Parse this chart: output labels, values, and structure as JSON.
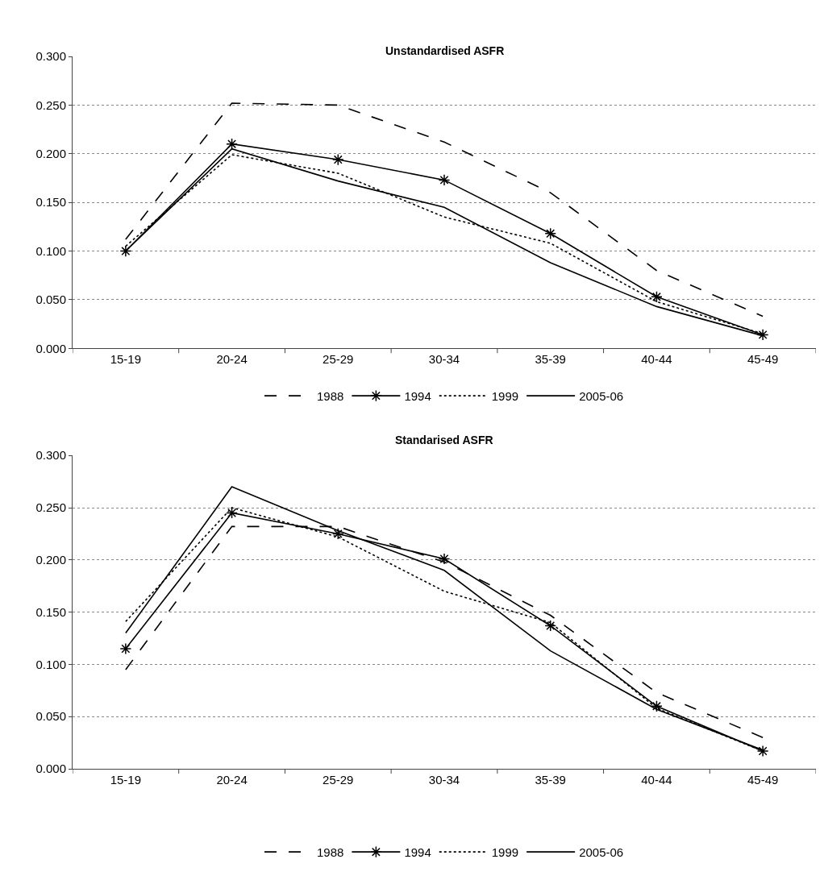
{
  "chart_data": [
    {
      "type": "line",
      "title": "Unstandardised ASFR",
      "categories": [
        "15-19",
        "20-24",
        "25-29",
        "30-34",
        "35-39",
        "40-44",
        "45-49"
      ],
      "series": [
        {
          "name": "1988",
          "color": "#000000",
          "line_style": "dashed",
          "marker": "none",
          "values": [
            0.112,
            0.252,
            0.25,
            0.212,
            0.16,
            0.08,
            0.033
          ]
        },
        {
          "name": "1994",
          "color": "#000000",
          "line_style": "solid",
          "marker": "cross",
          "values": [
            0.1,
            0.21,
            0.194,
            0.173,
            0.118,
            0.053,
            0.014
          ]
        },
        {
          "name": "1999",
          "color": "#000000",
          "line_style": "dotted",
          "marker": "none",
          "values": [
            0.105,
            0.199,
            0.18,
            0.135,
            0.108,
            0.048,
            0.015
          ]
        },
        {
          "name": "2005-06",
          "color": "#000000",
          "line_style": "solid",
          "marker": "none",
          "values": [
            0.1,
            0.205,
            0.172,
            0.145,
            0.088,
            0.043,
            0.013
          ]
        }
      ],
      "ylim": [
        0,
        0.3
      ],
      "yticks": [
        {
          "value": 0,
          "label": "0.000"
        },
        {
          "value": 0.05,
          "label": "0.050"
        },
        {
          "value": 0.1,
          "label": "0.100"
        },
        {
          "value": 0.15,
          "label": "0.150"
        },
        {
          "value": 0.2,
          "label": "0.200"
        },
        {
          "value": 0.25,
          "label": "0.250"
        },
        {
          "value": 0.3,
          "label": "0.300"
        }
      ],
      "grid": "y",
      "legend": "bottom"
    },
    {
      "type": "line",
      "title": "Standarised ASFR",
      "categories": [
        "15-19",
        "20-24",
        "25-29",
        "30-34",
        "35-39",
        "40-44",
        "45-49"
      ],
      "series": [
        {
          "name": "1988",
          "color": "#000000",
          "line_style": "dashed",
          "marker": "none",
          "values": [
            0.095,
            0.232,
            0.232,
            0.198,
            0.147,
            0.073,
            0.03
          ]
        },
        {
          "name": "1994",
          "color": "#000000",
          "line_style": "solid",
          "marker": "cross",
          "values": [
            0.115,
            0.245,
            0.225,
            0.201,
            0.137,
            0.06,
            0.017
          ]
        },
        {
          "name": "1999",
          "color": "#000000",
          "line_style": "dotted",
          "marker": "none",
          "values": [
            0.141,
            0.25,
            0.222,
            0.17,
            0.14,
            0.058,
            0.017
          ]
        },
        {
          "name": "2005-06",
          "color": "#000000",
          "line_style": "solid",
          "marker": "none",
          "values": [
            0.13,
            0.27,
            0.228,
            0.19,
            0.113,
            0.057,
            0.018
          ]
        }
      ],
      "ylim": [
        0,
        0.3
      ],
      "yticks": [
        {
          "value": 0,
          "label": "0.000"
        },
        {
          "value": 0.05,
          "label": "0.050"
        },
        {
          "value": 0.1,
          "label": "0.100"
        },
        {
          "value": 0.15,
          "label": "0.150"
        },
        {
          "value": 0.2,
          "label": "0.200"
        },
        {
          "value": 0.25,
          "label": "0.250"
        },
        {
          "value": 0.3,
          "label": "0.300"
        }
      ],
      "grid": "y",
      "legend": "bottom"
    }
  ]
}
